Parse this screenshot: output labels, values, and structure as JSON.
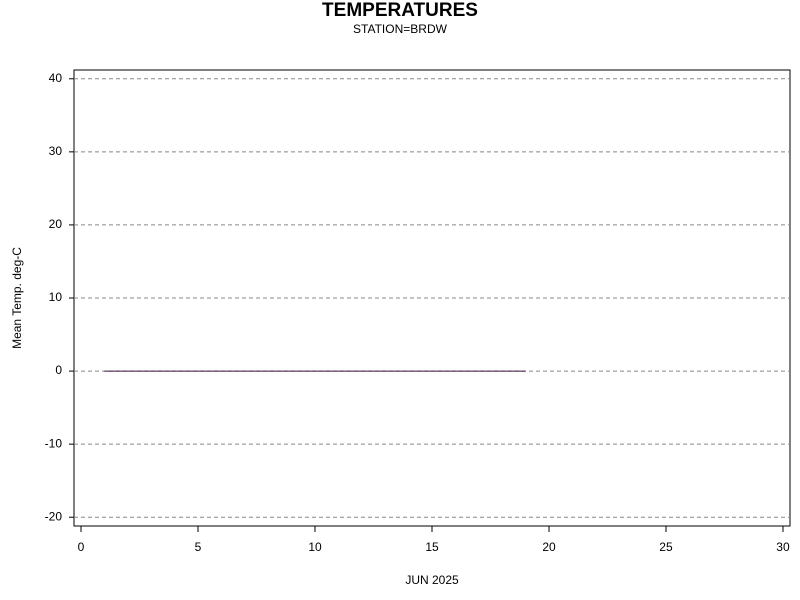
{
  "chart_data": {
    "type": "line",
    "title": "TEMPERATURES",
    "subtitle": "STATION=BRDW",
    "x_label": "JUN 2025",
    "y_label": "Mean Temp. deg-C",
    "x": [
      1,
      2,
      3,
      4,
      5,
      6,
      7,
      8,
      9,
      10,
      11,
      12,
      13,
      14,
      15,
      16,
      17,
      18,
      19
    ],
    "values": [
      0,
      0,
      0,
      0,
      0,
      0,
      0,
      0,
      0,
      0,
      0,
      0,
      0,
      0,
      0,
      0,
      0,
      0,
      0
    ],
    "color": "#3a0f3a",
    "xlim": [
      -0.3,
      30.3
    ],
    "xticks": [
      0,
      5,
      10,
      15,
      20,
      25,
      30
    ],
    "ylim": [
      -21.2,
      41.2
    ],
    "yticks": [
      -20,
      -10,
      0,
      10,
      20,
      30,
      40
    ],
    "grid": true
  }
}
